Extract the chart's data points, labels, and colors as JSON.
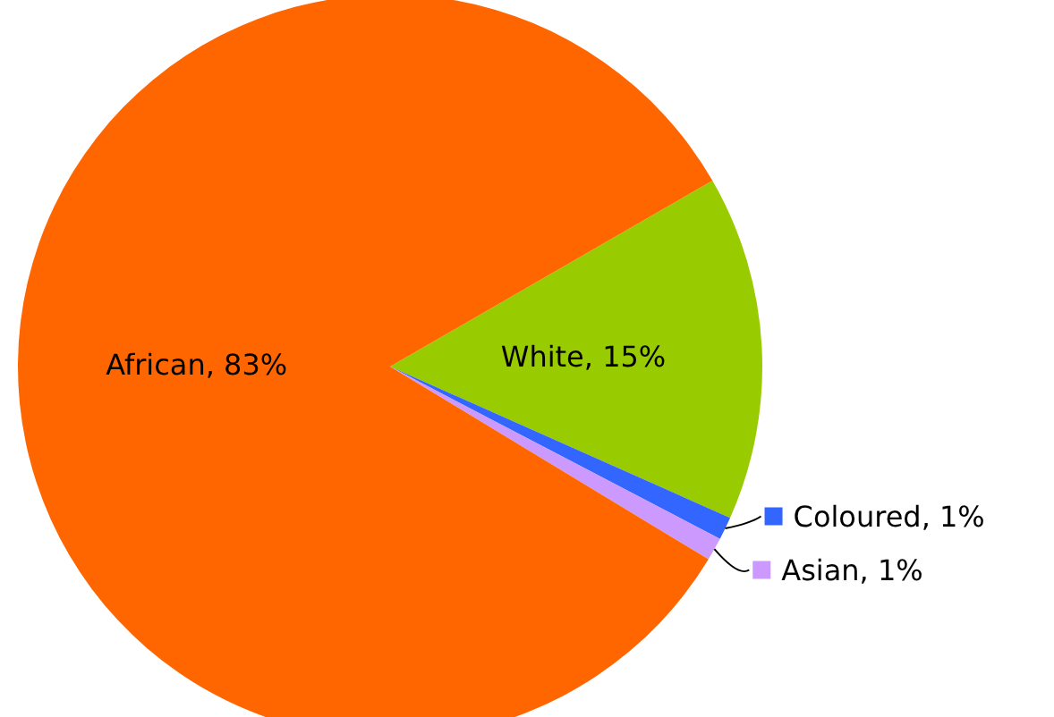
{
  "chart_data": {
    "type": "pie",
    "categories": [
      "White",
      "Coloured",
      "Asian",
      "African"
    ],
    "values": [
      15,
      1,
      1,
      83
    ],
    "value_labels": [
      "15%",
      "1%",
      "1%",
      "83%"
    ],
    "colors": [
      "#99cc00",
      "#3366ff",
      "#cc99ff",
      "#ff6600"
    ],
    "legend": "right"
  }
}
